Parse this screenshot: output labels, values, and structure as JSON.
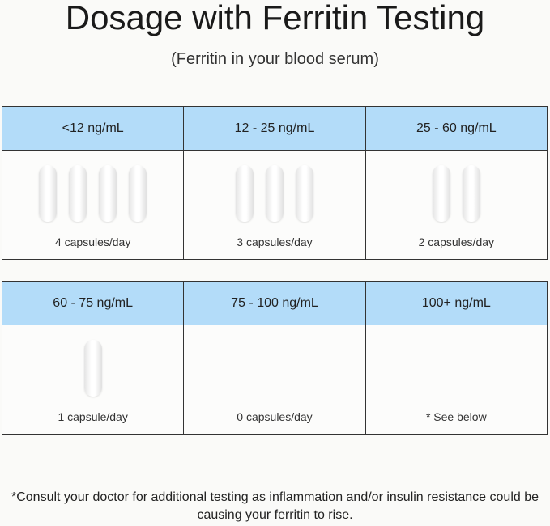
{
  "title": "Dosage with Ferritin Testing",
  "subtitle": "(Ferritin in your blood serum)",
  "rows": [
    [
      {
        "range": "<12 ng/mL",
        "capsules": 4,
        "label": "4 capsules/day"
      },
      {
        "range": "12 - 25 ng/mL",
        "capsules": 3,
        "label": "3 capsules/day"
      },
      {
        "range": "25 - 60 ng/mL",
        "capsules": 2,
        "label": "2 capsules/day"
      }
    ],
    [
      {
        "range": "60 - 75 ng/mL",
        "capsules": 1,
        "label": "1 capsule/day"
      },
      {
        "range": "75 - 100 ng/mL",
        "capsules": 0,
        "label": "0 capsules/day"
      },
      {
        "range": "100+ ng/mL",
        "capsules": 0,
        "label": "* See below"
      }
    ]
  ],
  "footnote": "*Consult your doctor for additional testing as inflammation and/or insulin resistance could be causing your ferritin to rise.",
  "colors": {
    "header": "#b3dcf9",
    "background": "#fafaf8",
    "border": "#333333"
  }
}
